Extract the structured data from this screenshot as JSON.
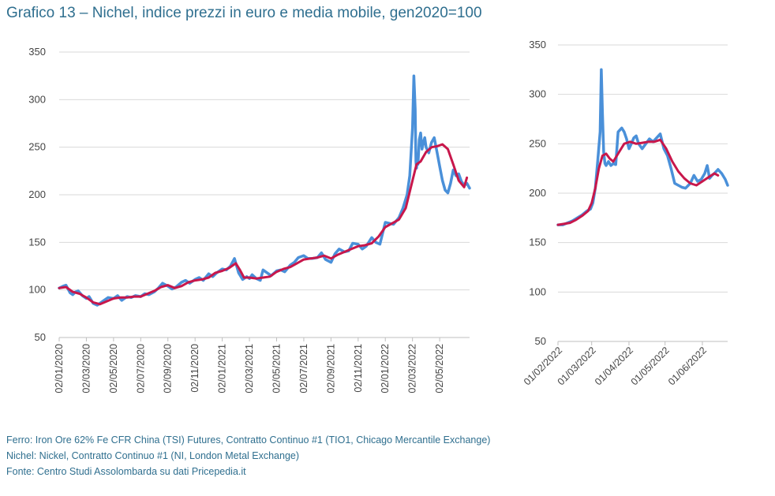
{
  "title": "Grafico 13 – Nichel, indice prezzi in euro e media mobile, gen2020=100",
  "notes": [
    "Ferro: Iron Ore 62% Fe CFR China (TSI) Futures, Contratto Continuo #1 (TIO1, Chicago Mercantile Exchange)",
    "Nichel: Nickel, Contratto Continuo #1 (NI, London Metal Exchange)",
    "Fonte: Centro Studi Assolombarda su dati Pricepedia.it"
  ],
  "colors": {
    "price": "#4a90d9",
    "moving_average": "#c8174b",
    "grid": "#d9d9d9",
    "text": "#444444"
  },
  "chart_data": [
    {
      "type": "line",
      "title": "",
      "xlabel": "",
      "ylabel": "",
      "ylim": [
        50,
        350
      ],
      "yticks": [
        50,
        100,
        150,
        200,
        250,
        300,
        350
      ],
      "grid": true,
      "xlim": [
        0,
        30.2
      ],
      "xtick_positions": [
        0,
        2,
        4,
        6,
        8,
        10,
        12,
        14,
        16,
        18,
        20,
        22,
        24,
        26,
        28
      ],
      "xtick_labels": [
        "02/01/2020",
        "02/03/2020",
        "02/05/2020",
        "02/07/2020",
        "02/09/2020",
        "02/11/2020",
        "02/01/2021",
        "02/03/2021",
        "02/05/2021",
        "02/07/2021",
        "02/09/2021",
        "02/11/2021",
        "02/01/2022",
        "02/03/2022",
        "02/05/2022"
      ],
      "series": [
        {
          "name": "Nichel, indice prezzi in euro",
          "x": [
            0,
            0.3,
            0.5,
            0.8,
            1.0,
            1.2,
            1.4,
            1.7,
            2.0,
            2.2,
            2.5,
            2.8,
            3.0,
            3.3,
            3.6,
            4.0,
            4.3,
            4.6,
            5.0,
            5.3,
            5.6,
            6.0,
            6.3,
            6.6,
            7.0,
            7.3,
            7.6,
            8.0,
            8.3,
            8.6,
            9.0,
            9.3,
            9.6,
            10.0,
            10.3,
            10.6,
            11.0,
            11.3,
            11.6,
            12.0,
            12.3,
            12.6,
            12.9,
            13.2,
            13.5,
            13.8,
            14.0,
            14.2,
            14.5,
            14.8,
            15.0,
            15.3,
            15.6,
            16.0,
            16.3,
            16.6,
            17.0,
            17.3,
            17.6,
            18.0,
            18.3,
            18.6,
            19.0,
            19.3,
            19.6,
            20.0,
            20.3,
            20.6,
            21.0,
            21.3,
            21.6,
            22.0,
            22.3,
            22.6,
            23.0,
            23.3,
            23.6,
            24.0,
            24.3,
            24.6,
            25.0,
            25.3,
            25.6,
            25.8,
            26.0,
            26.1,
            26.2,
            26.25,
            26.3,
            26.35,
            26.4,
            26.5,
            26.6,
            26.7,
            26.8,
            26.9,
            27.0,
            27.2,
            27.4,
            27.6,
            27.8,
            28.0,
            28.2,
            28.4,
            28.6,
            28.8,
            29.0,
            29.2,
            29.4,
            29.6,
            29.8,
            30.0,
            30.2
          ],
          "values": [
            102,
            104,
            105,
            97,
            95,
            98,
            99,
            94,
            91,
            93,
            86,
            84,
            86,
            89,
            92,
            91,
            94,
            89,
            93,
            92,
            94,
            93,
            96,
            95,
            98,
            102,
            107,
            104,
            101,
            103,
            108,
            110,
            107,
            111,
            113,
            110,
            117,
            114,
            118,
            122,
            121,
            125,
            133,
            118,
            111,
            114,
            112,
            116,
            112,
            110,
            121,
            118,
            115,
            120,
            121,
            119,
            126,
            129,
            134,
            136,
            133,
            133,
            134,
            139,
            132,
            129,
            138,
            143,
            140,
            141,
            149,
            148,
            143,
            146,
            155,
            150,
            148,
            171,
            170,
            169,
            176,
            186,
            200,
            220,
            270,
            325,
            290,
            235,
            228,
            240,
            232,
            258,
            265,
            248,
            255,
            260,
            250,
            244,
            255,
            260,
            245,
            230,
            215,
            205,
            202,
            212,
            226,
            220,
            222,
            214,
            210,
            212,
            207
          ]
        },
        {
          "name": "Media mobile",
          "x": [
            0,
            0.5,
            1.0,
            1.5,
            2.0,
            2.5,
            3.0,
            3.5,
            4.0,
            4.5,
            5.0,
            5.5,
            6.0,
            6.5,
            7.0,
            7.5,
            8.0,
            8.5,
            9.0,
            9.5,
            10.0,
            10.5,
            11.0,
            11.5,
            12.0,
            12.5,
            13.0,
            13.3,
            13.6,
            14.0,
            14.5,
            15.0,
            15.5,
            16.0,
            16.5,
            17.0,
            17.5,
            18.0,
            18.5,
            19.0,
            19.5,
            20.0,
            20.5,
            21.0,
            21.5,
            22.0,
            22.5,
            23.0,
            23.5,
            24.0,
            24.5,
            25.0,
            25.5,
            26.0,
            26.3,
            26.6,
            27.0,
            27.4,
            27.8,
            28.2,
            28.6,
            29.0,
            29.4,
            29.8,
            30.0
          ],
          "values": [
            102,
            103,
            98,
            96,
            92,
            87,
            85,
            88,
            91,
            92,
            92,
            93,
            93,
            96,
            99,
            103,
            105,
            102,
            104,
            108,
            110,
            111,
            113,
            118,
            120,
            123,
            128,
            121,
            113,
            113,
            112,
            113,
            114,
            119,
            122,
            124,
            128,
            132,
            133,
            134,
            136,
            133,
            137,
            140,
            143,
            146,
            147,
            149,
            156,
            166,
            170,
            174,
            186,
            215,
            232,
            235,
            245,
            250,
            251,
            253,
            248,
            232,
            215,
            208,
            218
          ]
        }
      ]
    },
    {
      "type": "line",
      "title": "",
      "xlabel": "",
      "ylabel": "",
      "ylim": [
        50,
        350
      ],
      "yticks": [
        50,
        100,
        150,
        200,
        250,
        300,
        350
      ],
      "grid": true,
      "xlim": [
        0,
        141
      ],
      "xtick_positions": [
        0,
        28,
        59,
        89,
        120
      ],
      "xtick_labels": [
        "01/02/2022",
        "01/03/2022",
        "01/04/2022",
        "01/05/2022",
        "01/06/2022"
      ],
      "series": [
        {
          "name": "Nichel, indice prezzi in euro",
          "x": [
            0,
            4,
            8,
            12,
            16,
            20,
            24,
            27,
            29,
            31,
            33,
            35,
            36,
            37,
            38,
            39,
            40,
            41,
            42,
            44,
            46,
            48,
            50,
            53,
            55,
            57,
            59,
            61,
            63,
            65,
            67,
            70,
            73,
            76,
            79,
            82,
            85,
            88,
            91,
            94,
            97,
            100,
            103,
            106,
            110,
            113,
            116,
            119,
            122,
            124,
            126,
            128,
            130,
            133,
            136,
            139,
            141
          ],
          "values": [
            168,
            168,
            170,
            172,
            175,
            178,
            182,
            184,
            190,
            205,
            232,
            262,
            325,
            280,
            242,
            230,
            228,
            230,
            232,
            228,
            230,
            229,
            262,
            266,
            262,
            255,
            245,
            250,
            256,
            258,
            250,
            245,
            250,
            255,
            252,
            256,
            260,
            245,
            238,
            225,
            210,
            208,
            206,
            205,
            210,
            218,
            212,
            214,
            220,
            228,
            215,
            218,
            220,
            224,
            220,
            214,
            208
          ]
        },
        {
          "name": "Media mobile",
          "x": [
            0,
            5,
            10,
            15,
            20,
            25,
            28,
            31,
            34,
            37,
            40,
            43,
            46,
            50,
            55,
            60,
            65,
            70,
            75,
            80,
            85,
            90,
            95,
            100,
            105,
            110,
            115,
            120,
            125,
            130,
            133
          ],
          "values": [
            168,
            169,
            170,
            173,
            177,
            182,
            190,
            205,
            225,
            238,
            240,
            235,
            232,
            240,
            250,
            252,
            250,
            251,
            252,
            252,
            254,
            245,
            232,
            222,
            215,
            210,
            208,
            212,
            216,
            220,
            218
          ]
        }
      ]
    }
  ]
}
